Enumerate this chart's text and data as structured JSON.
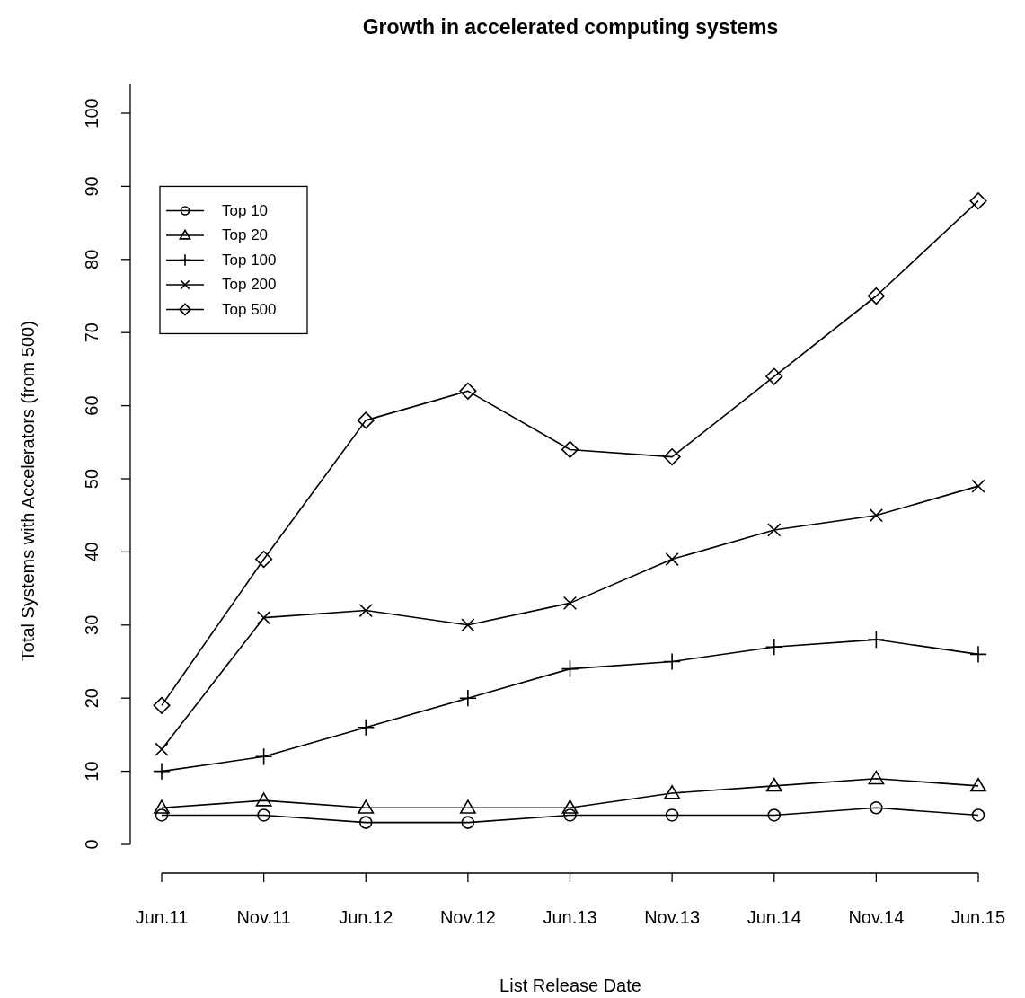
{
  "chart_data": {
    "type": "line",
    "title": "Growth in accelerated computing systems",
    "xlabel": "List Release Date",
    "ylabel": "Total Systems with Accelerators (from 500)",
    "categories": [
      "Jun.11",
      "Nov.11",
      "Jun.12",
      "Nov.12",
      "Jun.13",
      "Nov.13",
      "Jun.14",
      "Nov.14",
      "Jun.15"
    ],
    "series": [
      {
        "name": "Top 10",
        "color": "#000000",
        "marker": "circle",
        "values": [
          4,
          4,
          3,
          3,
          4,
          4,
          4,
          5,
          4
        ]
      },
      {
        "name": "Top 20",
        "color": "#000000",
        "marker": "triangle",
        "values": [
          5,
          6,
          5,
          5,
          5,
          7,
          8,
          9,
          8
        ]
      },
      {
        "name": "Top 100",
        "color": "#000000",
        "marker": "plus",
        "values": [
          10,
          12,
          16,
          20,
          24,
          25,
          27,
          28,
          26
        ]
      },
      {
        "name": "Top 200",
        "color": "#000000",
        "marker": "cross",
        "values": [
          13,
          31,
          32,
          30,
          33,
          39,
          43,
          45,
          49
        ]
      },
      {
        "name": "Top 500",
        "color": "#000000",
        "marker": "diamond",
        "values": [
          19,
          39,
          58,
          62,
          54,
          53,
          64,
          75,
          88
        ]
      }
    ],
    "ylim": [
      0,
      104
    ],
    "yticks": [
      0,
      10,
      20,
      30,
      40,
      50,
      60,
      70,
      80,
      90,
      100
    ],
    "legend": "top left",
    "line_style": "solid"
  }
}
